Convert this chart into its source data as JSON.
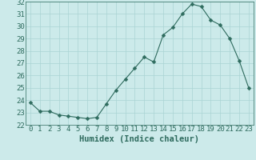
{
  "x": [
    0,
    1,
    2,
    3,
    4,
    5,
    6,
    7,
    8,
    9,
    10,
    11,
    12,
    13,
    14,
    15,
    16,
    17,
    18,
    19,
    20,
    21,
    22,
    23
  ],
  "y": [
    23.8,
    23.1,
    23.1,
    22.8,
    22.7,
    22.6,
    22.5,
    22.6,
    23.7,
    24.8,
    25.7,
    26.6,
    27.5,
    27.1,
    29.3,
    29.9,
    31.0,
    31.8,
    31.6,
    30.5,
    30.1,
    29.0,
    27.2,
    25.0
  ],
  "line_color": "#2e6b5e",
  "marker": "D",
  "marker_size": 2.5,
  "bg_color": "#cceaea",
  "grid_color": "#aad4d4",
  "xlabel": "Humidex (Indice chaleur)",
  "ylim": [
    22,
    32
  ],
  "xlim": [
    -0.5,
    23.5
  ],
  "yticks": [
    22,
    23,
    24,
    25,
    26,
    27,
    28,
    29,
    30,
    31,
    32
  ],
  "xticks": [
    0,
    1,
    2,
    3,
    4,
    5,
    6,
    7,
    8,
    9,
    10,
    11,
    12,
    13,
    14,
    15,
    16,
    17,
    18,
    19,
    20,
    21,
    22,
    23
  ],
  "label_color": "#2e6b5e",
  "tick_color": "#2e6b5e",
  "font_size": 6.5,
  "xlabel_font_size": 7.5
}
